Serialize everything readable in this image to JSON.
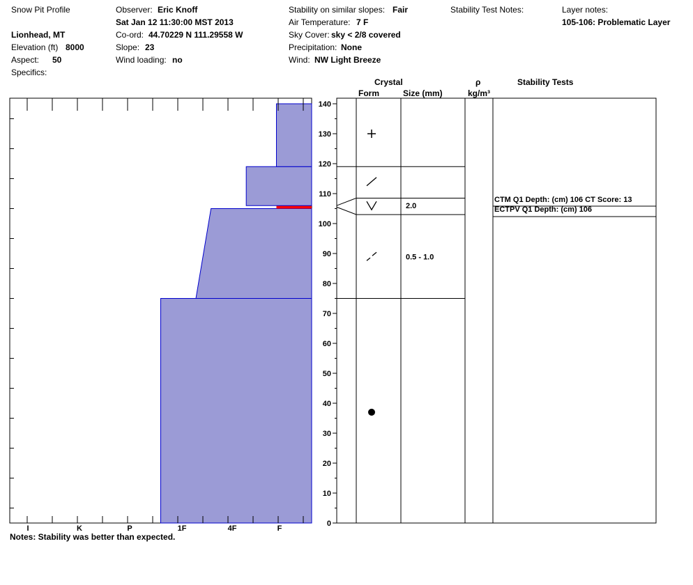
{
  "header": {
    "title": "Snow Pit Profile",
    "location": "Lionhead, MT",
    "elevation_label": "Elevation (ft)",
    "elevation_value": "8000",
    "aspect_label": "Aspect:",
    "aspect_value": "50",
    "specifics_label": "Specifics:",
    "observer_label": "Observer:",
    "observer_value": "Eric Knoff",
    "datetime": "Sat Jan 12 11:30:00 MST 2013",
    "coord_label": "Co-ord:",
    "coord_value": "44.70229 N 111.29558 W",
    "slope_label": "Slope:",
    "slope_value": "23",
    "wind_loading_label": "Wind loading:",
    "wind_loading_value": "no",
    "stability_label": "Stability on similar slopes:",
    "stability_value": "Fair",
    "air_temp_label": "Air Temperature:",
    "air_temp_value": "7 F",
    "sky_label": "Sky Cover:",
    "sky_value": "sky < 2/8 covered",
    "precip_label": "Precipitation:",
    "precip_value": "None",
    "wind_label": "Wind:",
    "wind_value": "NW Light Breeze",
    "stability_notes_label": "Stability Test Notes:",
    "layer_notes_label": "Layer notes:",
    "layer_notes_value": "105-106: Problematic Layer"
  },
  "columns": {
    "crystal": "Crystal",
    "form": "Form",
    "size": "Size (mm)",
    "rho": "ρ",
    "density_unit": "kg/m³",
    "stability_tests": "Stability Tests"
  },
  "notes": "Notes:  Stability was better than expected.",
  "colors": {
    "hardness_fill": "#9b9bd6",
    "hardness_edge": "#0000cc",
    "weak_layer": "#ff0000"
  },
  "chart_data": {
    "type": "area",
    "xlabel": "",
    "ylabel": "",
    "hardness_ticks": [
      "I",
      "K",
      "P",
      "1F",
      "4F",
      "F"
    ],
    "hardness_scale_note": "hand hardness index, F = 6 at right edge",
    "ylim": [
      0,
      140
    ],
    "y_ticks": [
      0,
      10,
      20,
      30,
      40,
      50,
      60,
      70,
      80,
      90,
      100,
      110,
      120,
      130,
      140
    ],
    "layers": [
      {
        "bottom": 0,
        "top": 75,
        "hardness_bottom": 3.0,
        "hardness_top": 3.0
      },
      {
        "bottom": 75,
        "top": 105,
        "hardness_bottom": 3.7,
        "hardness_top": 4.0
      },
      {
        "bottom": 105,
        "top": 106,
        "hardness_bottom": 5.3,
        "hardness_top": 5.3,
        "weak": true
      },
      {
        "bottom": 106,
        "top": 119,
        "hardness_bottom": 4.7,
        "hardness_top": 4.7
      },
      {
        "bottom": 119,
        "top": 140,
        "hardness_bottom": 5.3,
        "hardness_top": 5.3
      }
    ],
    "layer_boundaries": [
      75,
      103,
      108.5,
      119
    ],
    "crystals": [
      {
        "depth": 130,
        "form": "+",
        "size": ""
      },
      {
        "depth": 114,
        "form": "/",
        "size": ""
      },
      {
        "depth": 106,
        "form": "V",
        "size": "2.0"
      },
      {
        "depth": 89,
        "form": "- -",
        "size": "0.5 - 1.0"
      },
      {
        "depth": 37,
        "form": "●",
        "size": ""
      }
    ],
    "stability_tests": [
      {
        "depth": 106,
        "text": "CTM Q1 Depth: (cm) 106 CT Score: 13"
      },
      {
        "depth": 106,
        "text": "ECTPV Q1 Depth: (cm) 106"
      }
    ]
  }
}
